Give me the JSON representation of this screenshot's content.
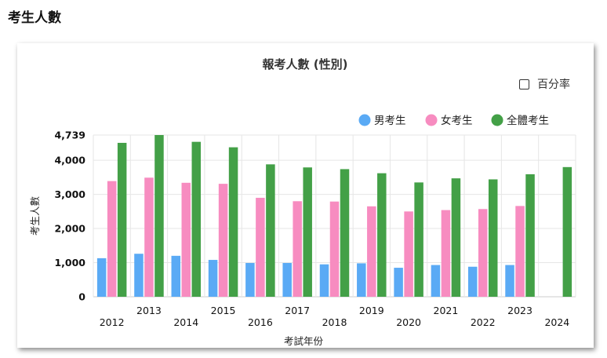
{
  "page": {
    "heading": "考生人數"
  },
  "card": {
    "percent_toggle_label": "百分率",
    "percent_toggle_checked": false
  },
  "colors": {
    "male": "#5aaaf5",
    "female": "#f78cc0",
    "all": "#43a047",
    "grid": "#e6e6e6",
    "axis": "#cccccc"
  },
  "chart_data": {
    "type": "bar",
    "title": "報考人數 (性別)",
    "xlabel": "考試年份",
    "ylabel": "考生人數",
    "categories": [
      "2012",
      "2013",
      "2014",
      "2015",
      "2016",
      "2017",
      "2018",
      "2019",
      "2020",
      "2021",
      "2022",
      "2023",
      "2024"
    ],
    "series": [
      {
        "name": "男考生",
        "values": [
          1130,
          1260,
          1200,
          1080,
          990,
          990,
          950,
          980,
          850,
          930,
          880,
          930,
          null
        ]
      },
      {
        "name": "女考生",
        "values": [
          3390,
          3490,
          3340,
          3310,
          2900,
          2800,
          2790,
          2650,
          2500,
          2540,
          2570,
          2660,
          null
        ]
      },
      {
        "name": "全體考生",
        "values": [
          4510,
          4739,
          4540,
          4380,
          3880,
          3790,
          3740,
          3620,
          3350,
          3470,
          3440,
          3590,
          3800
        ]
      }
    ],
    "ylim": [
      0,
      4739
    ],
    "yticks": [
      0,
      1000,
      2000,
      3000,
      4000,
      4739
    ],
    "ytick_labels": [
      "0",
      "1,000",
      "2,000",
      "3,000",
      "4,000",
      "4,739"
    ],
    "grid": true,
    "legend_position": "top-right"
  }
}
